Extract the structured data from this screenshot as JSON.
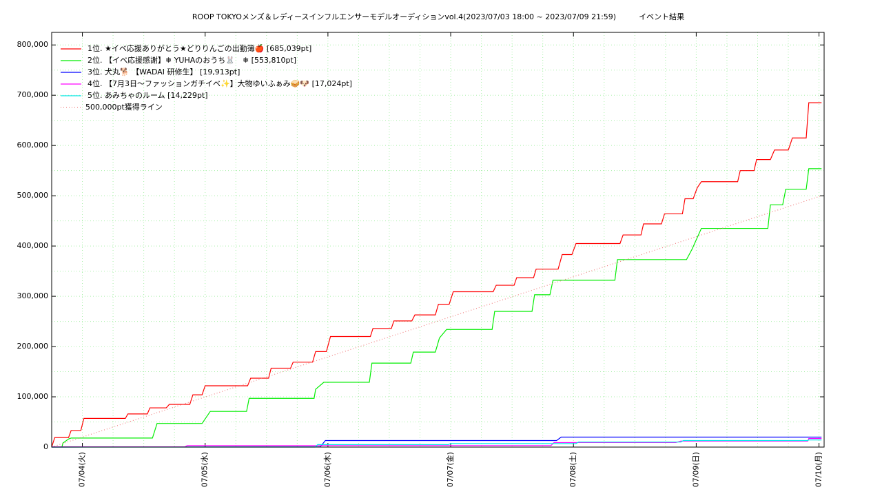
{
  "chart_data": {
    "type": "line",
    "title": "ROOP TOKYOメンズ＆レディースインフルエンサーモデルオーディションvol.4(2023/07/03 18:00 ~ 2023/07/09 21:59)　　　イベント結果",
    "xlim": [
      "2023-07-03T18:00",
      "2023-07-10T01:00"
    ],
    "xticks": [
      {
        "value": "2023-07-04T00:00",
        "label": "07/04(火)"
      },
      {
        "value": "2023-07-05T00:00",
        "label": "07/05(水)"
      },
      {
        "value": "2023-07-06T00:00",
        "label": "07/06(木)"
      },
      {
        "value": "2023-07-07T00:00",
        "label": "07/07(金)"
      },
      {
        "value": "2023-07-08T00:00",
        "label": "07/08(土)"
      },
      {
        "value": "2023-07-09T00:00",
        "label": "07/09(日)"
      },
      {
        "value": "2023-07-10T00:00",
        "label": "07/10(月)"
      }
    ],
    "ylim": [
      0,
      825000
    ],
    "yticks": [
      0,
      {
        "value": 100000,
        "label": "100,000"
      },
      {
        "value": 200000,
        "label": "200,000"
      },
      {
        "value": 300000,
        "label": "300,000"
      },
      {
        "value": 400000,
        "label": "400,000"
      },
      {
        "value": 500000,
        "label": "500,000"
      },
      {
        "value": 600000,
        "label": "600,000"
      },
      {
        "value": 700000,
        "label": "700,000"
      },
      {
        "value": 800000,
        "label": "800,000"
      }
    ],
    "grid": true,
    "legend": "upper left",
    "series": [
      {
        "name": "1位. ★イベ応援ありがとう★どりりんごの出勤簿🍎 [685,039pt]",
        "color": "#ff0000",
        "x": [
          "2023-07-03T18:00",
          "2023-07-03T18:36",
          "2023-07-03T21:18",
          "2023-07-03T21:48",
          "2023-07-03T23:42",
          "2023-07-04T00:18",
          "2023-07-04T08:24",
          "2023-07-04T08:54",
          "2023-07-04T12:42",
          "2023-07-04T13:12",
          "2023-07-04T16:24",
          "2023-07-04T17:00",
          "2023-07-04T21:00",
          "2023-07-04T21:36",
          "2023-07-04T23:24",
          "2023-07-05T00:00",
          "2023-07-05T08:18",
          "2023-07-05T08:54",
          "2023-07-05T12:24",
          "2023-07-05T12:54",
          "2023-07-05T16:42",
          "2023-07-05T17:12",
          "2023-07-05T21:00",
          "2023-07-05T21:36",
          "2023-07-05T23:42",
          "2023-07-06T00:30",
          "2023-07-06T08:18",
          "2023-07-06T08:48",
          "2023-07-06T12:24",
          "2023-07-06T12:54",
          "2023-07-06T16:24",
          "2023-07-06T17:00",
          "2023-07-06T21:00",
          "2023-07-06T21:36",
          "2023-07-06T23:42",
          "2023-07-07T00:30",
          "2023-07-07T08:18",
          "2023-07-07T08:54",
          "2023-07-07T12:24",
          "2023-07-07T12:54",
          "2023-07-07T16:12",
          "2023-07-07T16:42",
          "2023-07-07T21:00",
          "2023-07-07T21:48",
          "2023-07-07T23:42",
          "2023-07-08T00:30",
          "2023-07-08T09:06",
          "2023-07-08T09:42",
          "2023-07-08T13:12",
          "2023-07-08T13:42",
          "2023-07-08T17:12",
          "2023-07-08T17:48",
          "2023-07-08T21:18",
          "2023-07-08T21:48",
          "2023-07-08T23:24",
          "2023-07-09T00:12",
          "2023-07-09T01:00",
          "2023-07-09T08:06",
          "2023-07-09T08:36",
          "2023-07-09T11:18",
          "2023-07-09T11:48",
          "2023-07-09T14:30",
          "2023-07-09T15:18",
          "2023-07-09T18:00",
          "2023-07-09T18:48",
          "2023-07-09T21:30",
          "2023-07-09T22:00",
          "2023-07-10T00:30"
        ],
        "values": [
          0,
          19000,
          19000,
          33000,
          33000,
          57000,
          57000,
          66000,
          66000,
          78000,
          78000,
          85000,
          85000,
          104000,
          104000,
          122000,
          122000,
          137000,
          137000,
          157000,
          157000,
          169000,
          169000,
          190000,
          190000,
          220000,
          220000,
          236000,
          236000,
          251000,
          251000,
          263000,
          263000,
          284000,
          284000,
          309000,
          309000,
          322000,
          322000,
          337000,
          337000,
          354000,
          354000,
          383000,
          383000,
          405000,
          405000,
          422000,
          422000,
          444000,
          444000,
          464000,
          464000,
          494000,
          494000,
          516000,
          528000,
          528000,
          550000,
          550000,
          572000,
          572000,
          591000,
          591000,
          615000,
          615000,
          685039,
          685039
        ]
      },
      {
        "name": "2位. 【イベ応援感謝】❄ YUHAのおうち🐰　❄ [553,810pt]",
        "color": "#00ee00",
        "x": [
          "2023-07-03T20:00",
          "2023-07-03T20:12",
          "2023-07-03T21:18",
          "2023-07-03T21:48",
          "2023-07-04T13:42",
          "2023-07-04T14:36",
          "2023-07-04T23:24",
          "2023-07-05T01:00",
          "2023-07-05T08:06",
          "2023-07-05T08:36",
          "2023-07-05T21:18",
          "2023-07-05T21:36",
          "2023-07-05T23:12",
          "2023-07-06T08:06",
          "2023-07-06T08:36",
          "2023-07-06T16:12",
          "2023-07-06T16:42",
          "2023-07-06T21:00",
          "2023-07-06T21:48",
          "2023-07-06T23:12",
          "2023-07-07T08:06",
          "2023-07-07T08:36",
          "2023-07-07T15:54",
          "2023-07-07T16:24",
          "2023-07-07T19:24",
          "2023-07-07T20:00",
          "2023-07-08T08:06",
          "2023-07-08T08:36",
          "2023-07-08T22:06",
          "2023-07-08T23:12",
          "2023-07-09T01:00",
          "2023-07-09T14:00",
          "2023-07-09T14:30",
          "2023-07-09T16:54",
          "2023-07-09T17:30",
          "2023-07-09T21:30",
          "2023-07-09T22:00",
          "2023-07-10T00:30"
        ],
        "values": [
          0,
          8000,
          16000,
          18000,
          18000,
          47000,
          47000,
          71000,
          71000,
          97000,
          97000,
          115000,
          129000,
          129000,
          167000,
          167000,
          189000,
          189000,
          217000,
          234000,
          234000,
          270000,
          270000,
          303000,
          303000,
          332000,
          332000,
          373000,
          373000,
          394000,
          435000,
          435000,
          482000,
          482000,
          513000,
          513000,
          553810,
          553810
        ]
      },
      {
        "name": "3位. 犬丸🐕 【WADAI 研修生】 [19,913pt]",
        "color": "#0000ff",
        "x": [
          "2023-07-03T18:00",
          "2023-07-05T22:30",
          "2023-07-05T23:30",
          "2023-07-07T20:42",
          "2023-07-07T21:36",
          "2023-07-10T00:30"
        ],
        "values": [
          0,
          500,
          13000,
          13000,
          19913,
          19913
        ]
      },
      {
        "name": "4位. 【7月3日〜ファッションガチイベ✨】大物ゆいふぁみ🥪🐶 [17,024pt]",
        "color": "#ff00ff",
        "x": [
          "2023-07-03T18:00",
          "2023-07-04T20:00",
          "2023-07-04T20:30",
          "2023-07-07T19:36",
          "2023-07-07T20:12",
          "2023-07-08T20:00",
          "2023-07-08T21:00",
          "2023-07-09T21:48",
          "2023-07-09T22:00",
          "2023-07-10T00:30"
        ],
        "values": [
          500,
          500,
          3000,
          3000,
          9000,
          9000,
          12000,
          12000,
          17024,
          17024
        ]
      },
      {
        "name": "5位. あみちゃのルーム [14,229pt]",
        "color": "#00e8e8",
        "x": [
          "2023-07-03T18:00",
          "2023-07-05T21:30",
          "2023-07-05T22:00",
          "2023-07-06T23:30",
          "2023-07-07T00:00",
          "2023-07-08T00:30",
          "2023-07-08T01:00",
          "2023-07-08T21:00",
          "2023-07-08T21:30",
          "2023-07-09T21:48",
          "2023-07-09T22:00",
          "2023-07-10T00:30"
        ],
        "values": [
          0,
          0,
          5000,
          5000,
          7000,
          7000,
          10000,
          10000,
          13000,
          13000,
          14229,
          14229
        ]
      },
      {
        "name": "500,000pt獲得ライン",
        "color": "#f08080",
        "dash": true,
        "x": [
          "2023-07-03T18:00",
          "2023-07-10T00:30"
        ],
        "values": [
          0,
          500000
        ]
      }
    ]
  }
}
